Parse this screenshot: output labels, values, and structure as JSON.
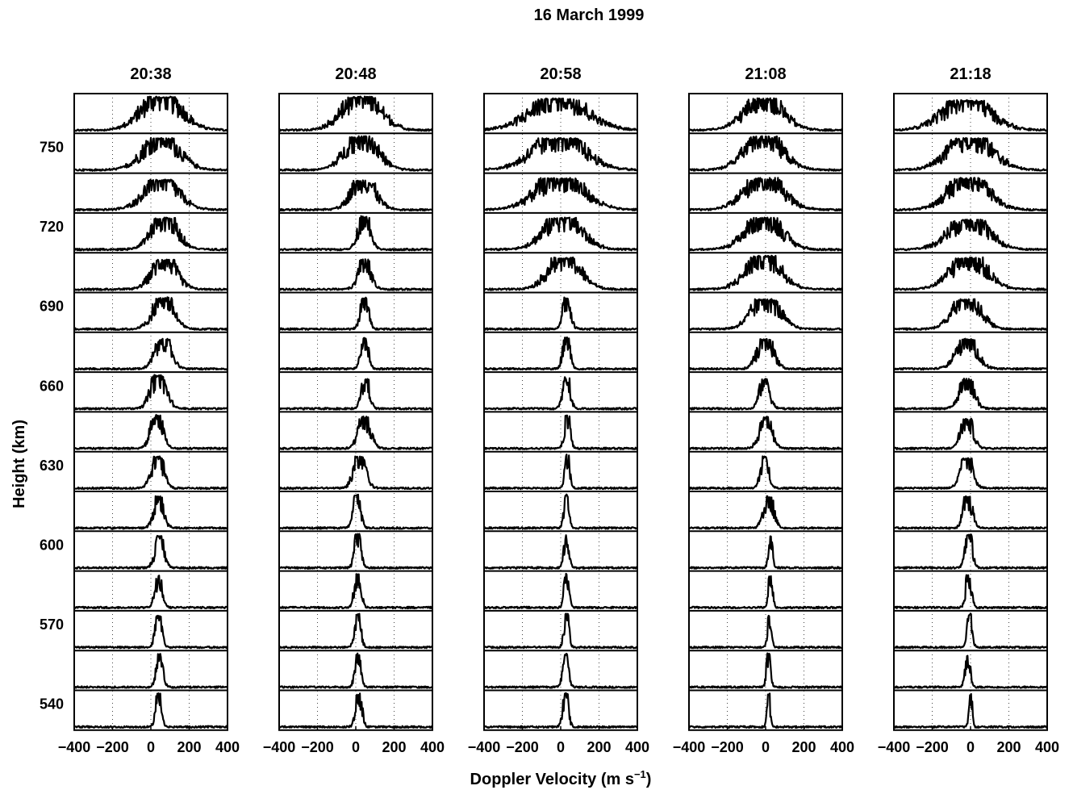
{
  "chart_data": {
    "type": "line",
    "title": "16 March 1999",
    "xlabel": "Doppler Velocity (m s",
    "xlabel_sup": "−1",
    "xlabel_end": ")",
    "ylabel": "Height (km)",
    "xlim": [
      -400,
      400
    ],
    "x_ticks": [
      -400,
      -200,
      0,
      200,
      400
    ],
    "x_tick_labels": [
      "−400",
      "−200",
      "0",
      "200",
      "400"
    ],
    "x_grid_lines": [
      -200,
      0,
      200
    ],
    "grid": "dotted vertical",
    "height_ticks": [
      "750",
      "720",
      "690",
      "660",
      "630",
      "600",
      "570",
      "540"
    ],
    "panels": [
      {
        "time": "20:38",
        "spectra": [
          {
            "center": 55,
            "width": 100,
            "amp": 0.9
          },
          {
            "center": 55,
            "width": 90,
            "amp": 0.85
          },
          {
            "center": 55,
            "width": 85,
            "amp": 0.8
          },
          {
            "center": 70,
            "width": 65,
            "amp": 0.85
          },
          {
            "center": 70,
            "width": 60,
            "amp": 0.8
          },
          {
            "center": 65,
            "width": 50,
            "amp": 0.85
          },
          {
            "center": 65,
            "width": 40,
            "amp": 0.8
          },
          {
            "center": 40,
            "width": 38,
            "amp": 0.9
          },
          {
            "center": 30,
            "width": 30,
            "amp": 0.9
          },
          {
            "center": 35,
            "width": 30,
            "amp": 0.85
          },
          {
            "center": 40,
            "width": 25,
            "amp": 0.85
          },
          {
            "center": 45,
            "width": 22,
            "amp": 0.85
          },
          {
            "center": 40,
            "width": 18,
            "amp": 0.85
          },
          {
            "center": 40,
            "width": 16,
            "amp": 0.85
          },
          {
            "center": 45,
            "width": 16,
            "amp": 0.9
          },
          {
            "center": 40,
            "width": 14,
            "amp": 0.9
          }
        ]
      },
      {
        "time": "20:48",
        "spectra": [
          {
            "center": 30,
            "width": 95,
            "amp": 0.9
          },
          {
            "center": 30,
            "width": 80,
            "amp": 0.9
          },
          {
            "center": 40,
            "width": 60,
            "amp": 0.8
          },
          {
            "center": 45,
            "width": 30,
            "amp": 0.9
          },
          {
            "center": 45,
            "width": 30,
            "amp": 0.8
          },
          {
            "center": 45,
            "width": 20,
            "amp": 0.85
          },
          {
            "center": 45,
            "width": 18,
            "amp": 0.85
          },
          {
            "center": 50,
            "width": 20,
            "amp": 0.8
          },
          {
            "center": 45,
            "width": 30,
            "amp": 0.85
          },
          {
            "center": 20,
            "width": 30,
            "amp": 0.85
          },
          {
            "center": 5,
            "width": 18,
            "amp": 0.9
          },
          {
            "center": 10,
            "width": 16,
            "amp": 0.9
          },
          {
            "center": 10,
            "width": 16,
            "amp": 0.9
          },
          {
            "center": 10,
            "width": 15,
            "amp": 0.9
          },
          {
            "center": 10,
            "width": 14,
            "amp": 0.9
          },
          {
            "center": 15,
            "width": 16,
            "amp": 0.9
          }
        ]
      },
      {
        "time": "20:58",
        "spectra": [
          {
            "center": -10,
            "width": 140,
            "amp": 0.85
          },
          {
            "center": -10,
            "width": 130,
            "amp": 0.85
          },
          {
            "center": -5,
            "width": 120,
            "amp": 0.85
          },
          {
            "center": 10,
            "width": 95,
            "amp": 0.85
          },
          {
            "center": 20,
            "width": 80,
            "amp": 0.85
          },
          {
            "center": 30,
            "width": 20,
            "amp": 0.85
          },
          {
            "center": 30,
            "width": 18,
            "amp": 0.85
          },
          {
            "center": 30,
            "width": 18,
            "amp": 0.85
          },
          {
            "center": 35,
            "width": 14,
            "amp": 0.9
          },
          {
            "center": 35,
            "width": 12,
            "amp": 0.9
          },
          {
            "center": 30,
            "width": 12,
            "amp": 0.9
          },
          {
            "center": 30,
            "width": 12,
            "amp": 0.9
          },
          {
            "center": 30,
            "width": 12,
            "amp": 0.9
          },
          {
            "center": 30,
            "width": 12,
            "amp": 0.9
          },
          {
            "center": 25,
            "width": 14,
            "amp": 0.9
          },
          {
            "center": 25,
            "width": 14,
            "amp": 0.9
          }
        ]
      },
      {
        "time": "21:08",
        "spectra": [
          {
            "center": -10,
            "width": 95,
            "amp": 0.85
          },
          {
            "center": -10,
            "width": 95,
            "amp": 0.9
          },
          {
            "center": -10,
            "width": 95,
            "amp": 0.85
          },
          {
            "center": -10,
            "width": 90,
            "amp": 0.85
          },
          {
            "center": -10,
            "width": 85,
            "amp": 0.9
          },
          {
            "center": 0,
            "width": 70,
            "amp": 0.8
          },
          {
            "center": 0,
            "width": 40,
            "amp": 0.8
          },
          {
            "center": -5,
            "width": 25,
            "amp": 0.8
          },
          {
            "center": 0,
            "width": 30,
            "amp": 0.85
          },
          {
            "center": -5,
            "width": 20,
            "amp": 0.85
          },
          {
            "center": 15,
            "width": 25,
            "amp": 0.85
          },
          {
            "center": 25,
            "width": 10,
            "amp": 0.85
          },
          {
            "center": 25,
            "width": 10,
            "amp": 0.85
          },
          {
            "center": 20,
            "width": 10,
            "amp": 0.85
          },
          {
            "center": 15,
            "width": 10,
            "amp": 0.9
          },
          {
            "center": 15,
            "width": 8,
            "amp": 0.9
          }
        ]
      },
      {
        "time": "21:18",
        "spectra": [
          {
            "center": -20,
            "width": 120,
            "amp": 0.8
          },
          {
            "center": 0,
            "width": 110,
            "amp": 0.85
          },
          {
            "center": -10,
            "width": 100,
            "amp": 0.85
          },
          {
            "center": -10,
            "width": 100,
            "amp": 0.8
          },
          {
            "center": -10,
            "width": 90,
            "amp": 0.85
          },
          {
            "center": -20,
            "width": 70,
            "amp": 0.8
          },
          {
            "center": -20,
            "width": 50,
            "amp": 0.8
          },
          {
            "center": -20,
            "width": 35,
            "amp": 0.8
          },
          {
            "center": -20,
            "width": 30,
            "amp": 0.8
          },
          {
            "center": -20,
            "width": 30,
            "amp": 0.8
          },
          {
            "center": -15,
            "width": 22,
            "amp": 0.85
          },
          {
            "center": -10,
            "width": 18,
            "amp": 0.9
          },
          {
            "center": -10,
            "width": 14,
            "amp": 0.9
          },
          {
            "center": -5,
            "width": 12,
            "amp": 0.9
          },
          {
            "center": -15,
            "width": 12,
            "amp": 0.85
          },
          {
            "center": 0,
            "width": 8,
            "amp": 0.9
          }
        ]
      }
    ]
  }
}
